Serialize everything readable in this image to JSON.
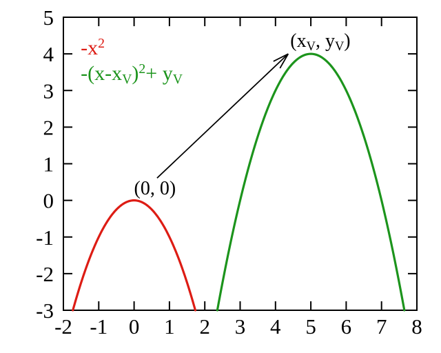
{
  "chart_data": {
    "type": "line",
    "title": "",
    "xlabel": "",
    "ylabel": "",
    "xlim": [
      -2,
      8
    ],
    "ylim": [
      -3,
      5
    ],
    "xticks": [
      -2,
      -1,
      0,
      1,
      2,
      3,
      4,
      5,
      6,
      7,
      8
    ],
    "yticks": [
      -3,
      -2,
      -1,
      0,
      1,
      2,
      3,
      4,
      5
    ],
    "grid": false,
    "border": "box-with-mirrored-ticks",
    "legend_position": "top-left-inside",
    "axis_color": "#000000",
    "background_color": "#ffffff",
    "series": [
      {
        "name": "-x^2",
        "label_parts": [
          {
            "t": "-x"
          },
          {
            "t": "2",
            "style": "sup"
          }
        ],
        "color": "#dd1c14",
        "formula": {
          "a": -1,
          "h": 0,
          "k": 0
        },
        "vertex": [
          0,
          0
        ],
        "x_range": [
          -1.7320508,
          1.7320508
        ],
        "points": [
          [
            -1.732,
            -3
          ],
          [
            -1.5,
            -2.25
          ],
          [
            -1,
            -1
          ],
          [
            -0.5,
            -0.25
          ],
          [
            0,
            0
          ],
          [
            0.5,
            -0.25
          ],
          [
            1,
            -1
          ],
          [
            1.5,
            -2.25
          ],
          [
            1.732,
            -3
          ]
        ]
      },
      {
        "name": "-(x-x_V)^2 + y_V",
        "label_parts": [
          {
            "t": "-(x-x"
          },
          {
            "t": "V",
            "style": "sub"
          },
          {
            "t": ")"
          },
          {
            "t": "2",
            "style": "sup"
          },
          {
            "t": "+ y"
          },
          {
            "t": "V",
            "style": "sub"
          }
        ],
        "color": "#1c941c",
        "formula": {
          "a": -1,
          "h": 5,
          "k": 4
        },
        "vertex": [
          5,
          4
        ],
        "x_range": [
          2.3542487,
          7.6457513
        ],
        "points": [
          [
            2.354,
            -3
          ],
          [
            3,
            0
          ],
          [
            3.5,
            1.75
          ],
          [
            4,
            3
          ],
          [
            4.5,
            3.75
          ],
          [
            5,
            4
          ],
          [
            5.5,
            3.75
          ],
          [
            6,
            3
          ],
          [
            6.5,
            1.75
          ],
          [
            7,
            0
          ],
          [
            7.646,
            -3
          ]
        ]
      }
    ],
    "legend": [
      {
        "id": "legend-entry-red",
        "color": "#dd1c14",
        "at": [
          -1.51,
          4.15
        ],
        "parts": [
          {
            "t": "-x"
          },
          {
            "t": "2",
            "style": "sup"
          }
        ]
      },
      {
        "id": "legend-entry-green",
        "color": "#1c941c",
        "at": [
          -1.51,
          3.46
        ],
        "parts": [
          {
            "t": "-(x-x"
          },
          {
            "t": "V",
            "style": "sub"
          },
          {
            "t": ")"
          },
          {
            "t": "2",
            "style": "sup"
          },
          {
            "t": "+ y"
          },
          {
            "t": "V",
            "style": "sub"
          }
        ]
      }
    ],
    "annotations": [
      {
        "id": "origin-label",
        "type": "label",
        "color": "#000000",
        "at": [
          0.59,
          0.31
        ],
        "parts": [
          {
            "t": "(0, 0)"
          }
        ]
      },
      {
        "id": "vertex-label",
        "type": "label",
        "color": "#000000",
        "at": [
          5.27,
          4.34
        ],
        "parts": [
          {
            "t": "(x"
          },
          {
            "t": "V",
            "style": "sub"
          },
          {
            "t": ", y"
          },
          {
            "t": "V",
            "style": "sub"
          },
          {
            "t": ")"
          }
        ]
      },
      {
        "id": "vertex-arrow",
        "type": "arrow",
        "color": "#000000",
        "from": [
          0.65,
          0.61
        ],
        "to": [
          4.36,
          4.0
        ]
      }
    ]
  }
}
